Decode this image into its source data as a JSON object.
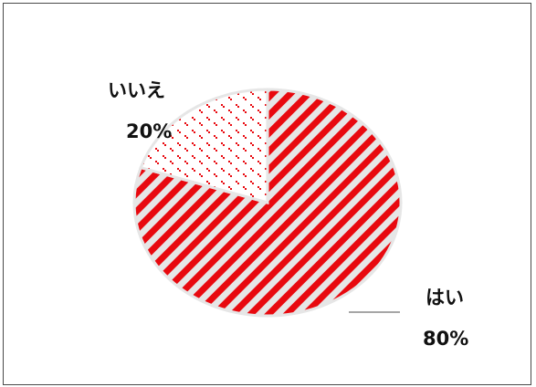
{
  "chart_data": {
    "type": "pie",
    "slices": [
      {
        "label": "はい",
        "value": 80,
        "display": "80%",
        "pattern": "diagonal-stripes",
        "color": "#e8090f",
        "background": "#e6e6e6"
      },
      {
        "label": "いいえ",
        "value": 20,
        "display": "20%",
        "pattern": "dots",
        "color": "#e8090f",
        "background": "#ffffff"
      }
    ],
    "title": "",
    "legend": "none",
    "start_angle_deg": 0,
    "direction": "clockwise"
  }
}
